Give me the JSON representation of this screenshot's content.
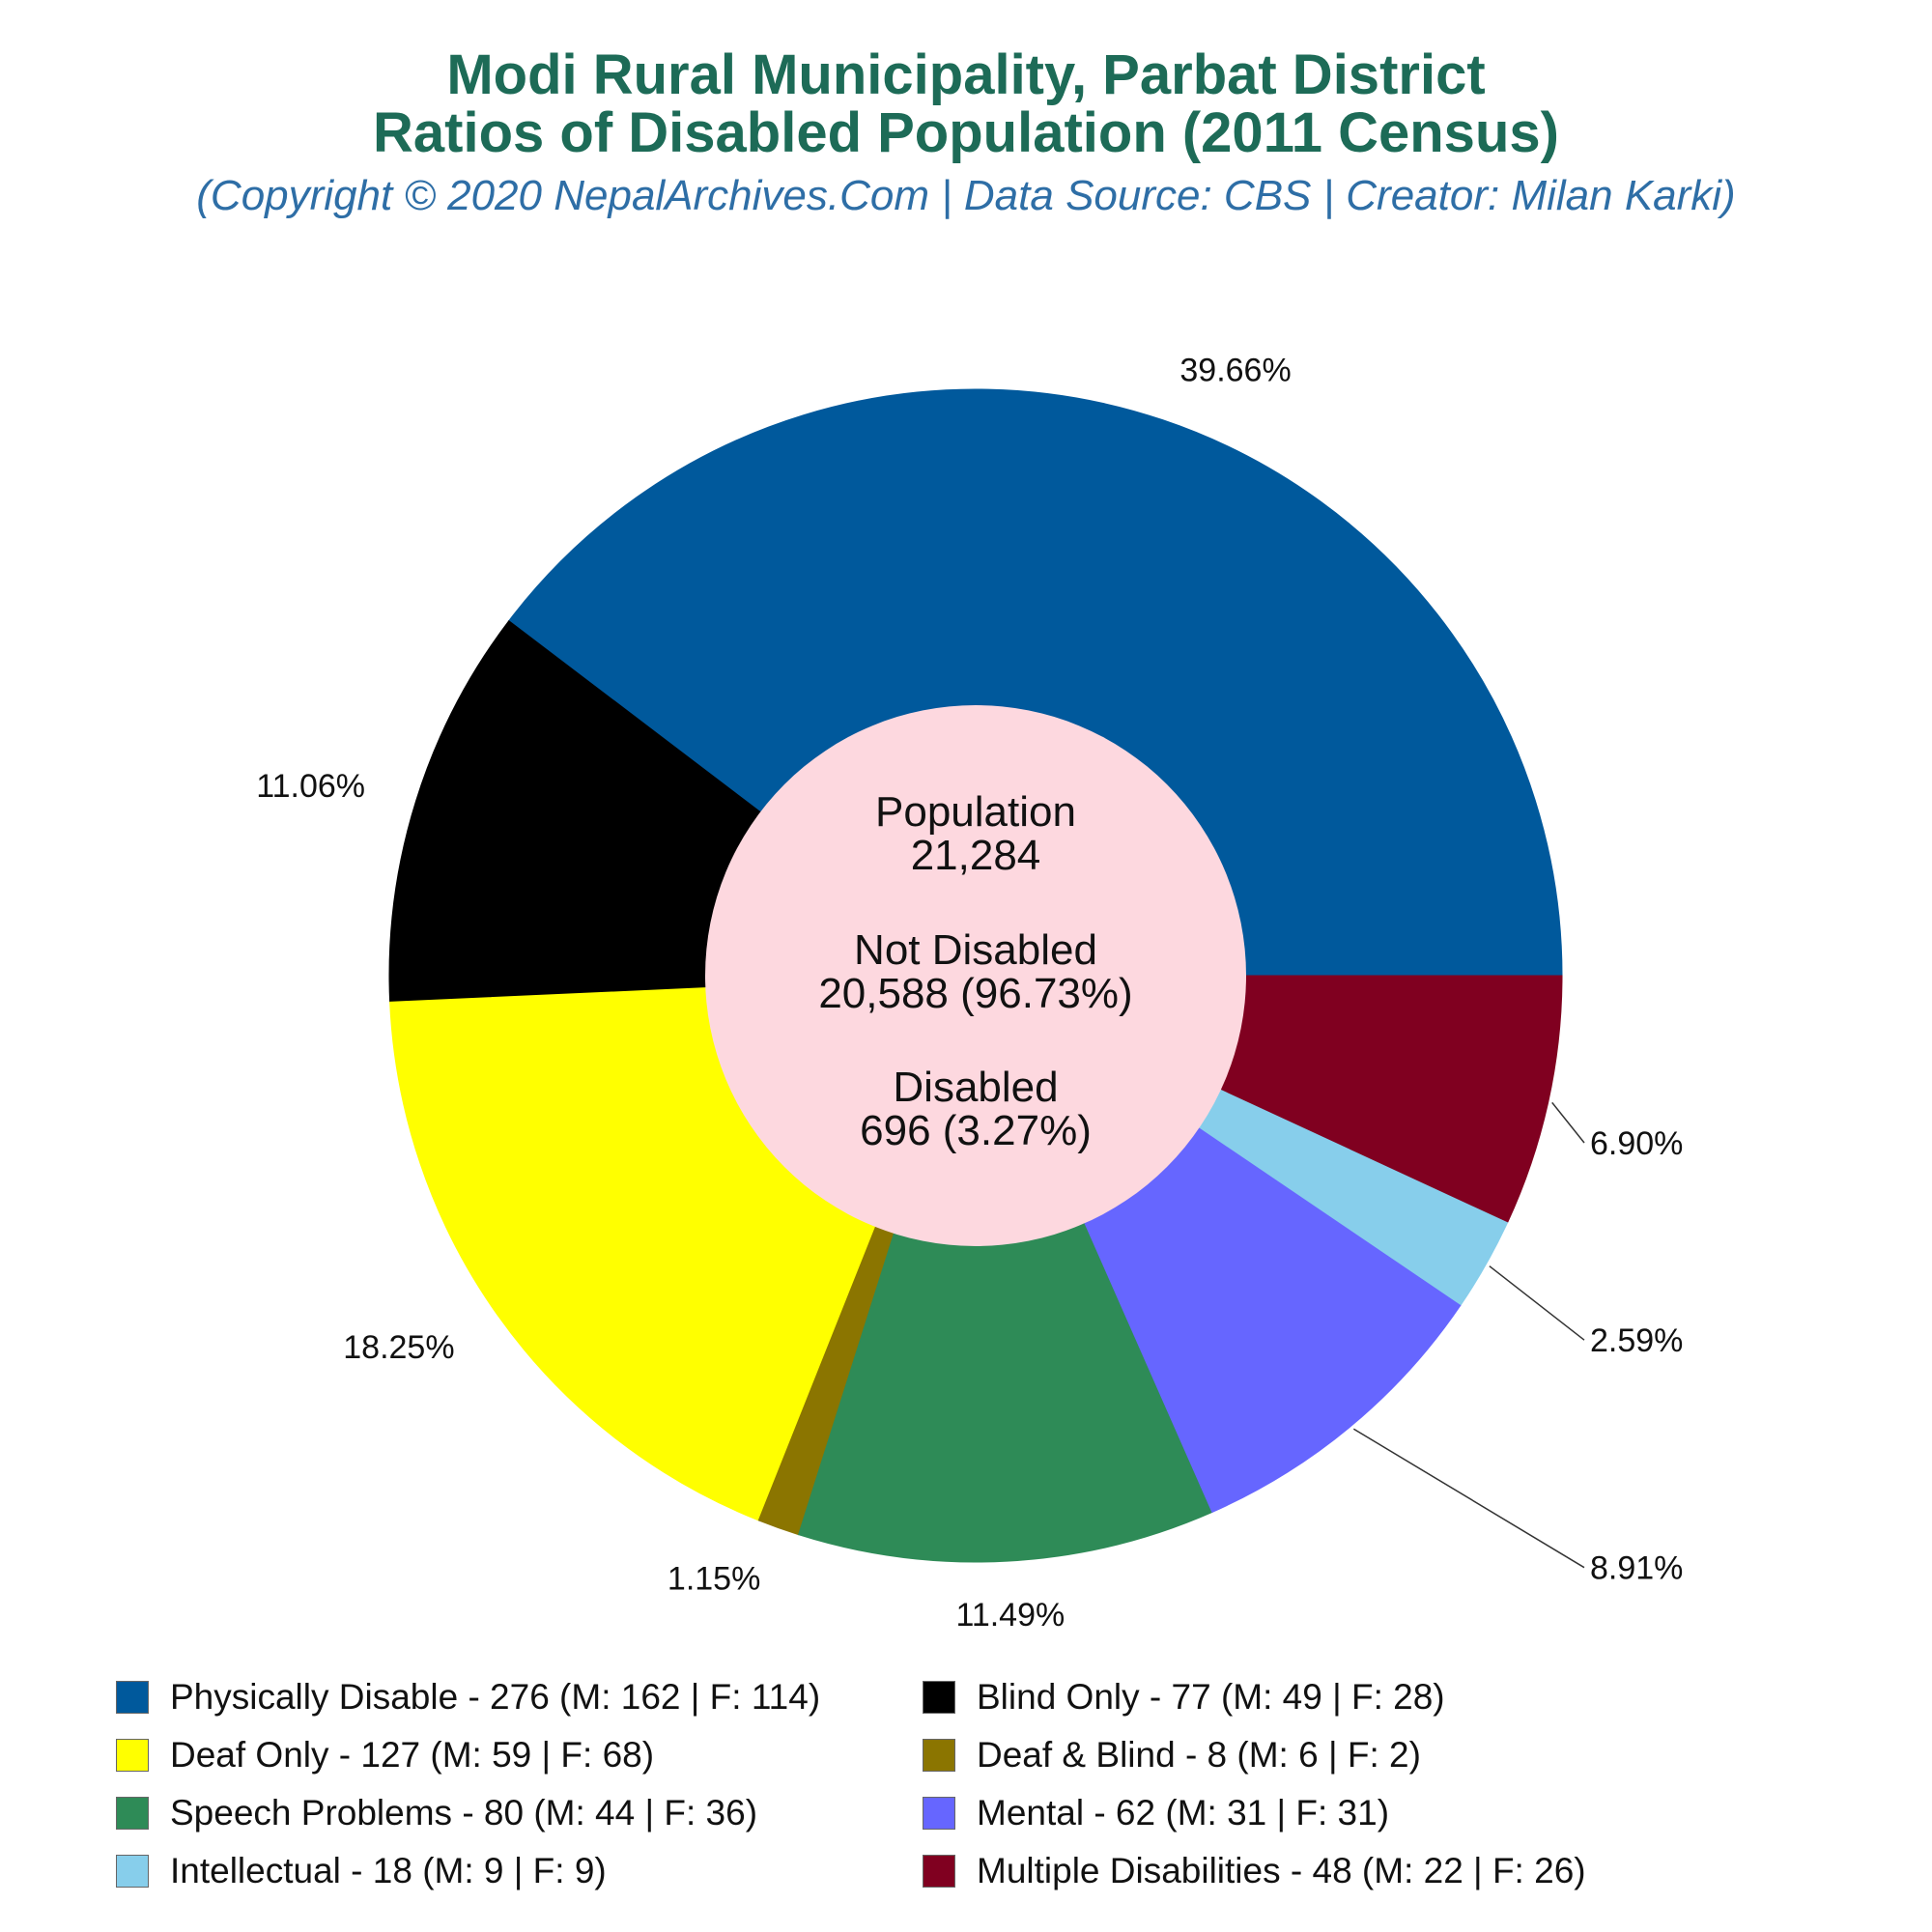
{
  "title_line1": "Modi Rural Municipality, Parbat District",
  "title_line2": "Ratios of Disabled Population (2011 Census)",
  "subtitle": "(Copyright © 2020 NepalArchives.Com | Data Source: CBS | Creator: Milan Karki)",
  "center": {
    "line1": "Population",
    "line2": "21,284",
    "line3": "Not Disabled",
    "line4": "20,588 (96.73%)",
    "line5": "Disabled",
    "line6": "696 (3.27%)"
  },
  "chart_data": {
    "type": "pie",
    "style": "donut",
    "total_disabled": 696,
    "slices": [
      {
        "name": "Physically Disable",
        "value": 276,
        "male": 162,
        "female": 114,
        "pct_label": "39.66%",
        "color": "#00599c",
        "legend": "Physically Disable - 276 (M: 162 | F: 114)"
      },
      {
        "name": "Blind Only",
        "value": 77,
        "male": 49,
        "female": 28,
        "pct_label": "11.06%",
        "color": "#000000",
        "legend": "Blind Only - 77 (M: 49 | F: 28)"
      },
      {
        "name": "Deaf Only",
        "value": 127,
        "male": 59,
        "female": 68,
        "pct_label": "18.25%",
        "color": "#ffff00",
        "legend": "Deaf Only - 127 (M: 59 | F: 68)"
      },
      {
        "name": "Deaf & Blind",
        "value": 8,
        "male": 6,
        "female": 2,
        "pct_label": "1.15%",
        "color": "#8b7500",
        "legend": "Deaf & Blind - 8 (M: 6 | F: 2)"
      },
      {
        "name": "Speech Problems",
        "value": 80,
        "male": 44,
        "female": 36,
        "pct_label": "11.49%",
        "color": "#2e8b57",
        "legend": "Speech Problems - 80 (M: 44 | F: 36)"
      },
      {
        "name": "Mental",
        "value": 62,
        "male": 31,
        "female": 31,
        "pct_label": "8.91%",
        "color": "#6666ff",
        "legend": "Mental - 62 (M: 31 | F: 31)"
      },
      {
        "name": "Intellectual",
        "value": 18,
        "male": 9,
        "female": 9,
        "pct_label": "2.59%",
        "color": "#87ceeb",
        "legend": "Intellectual - 18 (M: 9 | F: 9)"
      },
      {
        "name": "Multiple Disabilities",
        "value": 48,
        "male": 22,
        "female": 26,
        "pct_label": "6.90%",
        "color": "#800020",
        "legend": "Multiple Disabilities - 48 (M: 22 | F: 26)"
      }
    ],
    "center_color": "#fdd8df",
    "legend_placement": "bottom"
  }
}
